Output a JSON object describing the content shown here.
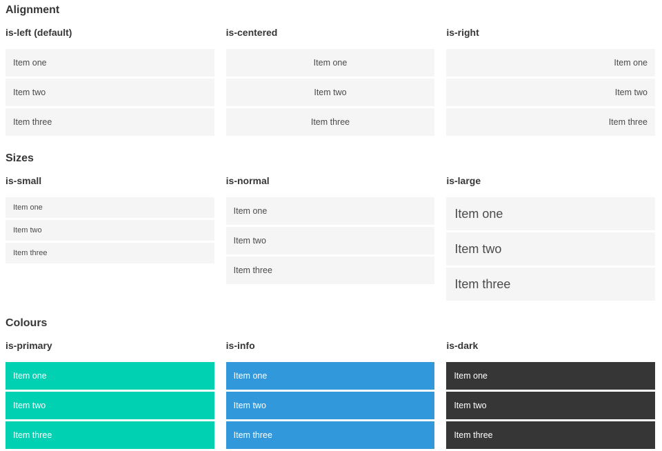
{
  "colors": {
    "page_background": "#ffffff",
    "item_background": "#f5f5f5",
    "item_text": "#4a4a4a",
    "heading_text": "#363636",
    "primary": "#00d1b2",
    "info": "#3298dc",
    "dark": "#363636",
    "colored_item_text": "#ffffff"
  },
  "sections": [
    {
      "title": "Alignment",
      "groups": [
        {
          "label": "is-left (default)",
          "variant": "left",
          "items": [
            "Item one",
            "Item two",
            "Item three"
          ]
        },
        {
          "label": "is-centered",
          "variant": "centered",
          "items": [
            "Item one",
            "Item two",
            "Item three"
          ]
        },
        {
          "label": "is-right",
          "variant": "right",
          "items": [
            "Item one",
            "Item two",
            "Item three"
          ]
        }
      ]
    },
    {
      "title": "Sizes",
      "groups": [
        {
          "label": "is-small",
          "variant": "small",
          "items": [
            "Item one",
            "Item two",
            "Item three"
          ]
        },
        {
          "label": "is-normal",
          "variant": "normal",
          "items": [
            "Item one",
            "Item two",
            "Item three"
          ]
        },
        {
          "label": "is-large",
          "variant": "large",
          "items": [
            "Item one",
            "Item two",
            "Item three"
          ]
        }
      ]
    },
    {
      "title": "Colours",
      "groups": [
        {
          "label": "is-primary",
          "variant": "primary",
          "items": [
            "Item one",
            "Item two",
            "Item three"
          ]
        },
        {
          "label": "is-info",
          "variant": "info",
          "items": [
            "Item one",
            "Item two",
            "Item three"
          ]
        },
        {
          "label": "is-dark",
          "variant": "dark",
          "items": [
            "Item one",
            "Item two",
            "Item three"
          ]
        }
      ]
    }
  ]
}
